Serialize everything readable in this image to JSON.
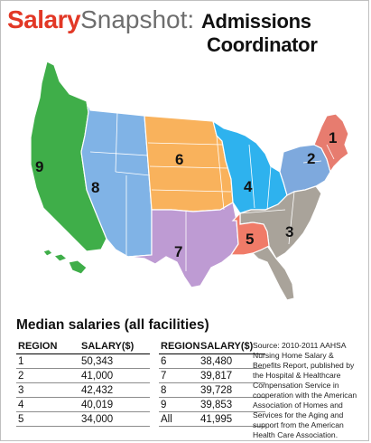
{
  "title": {
    "part1": "Salary",
    "part2": "Snapshot",
    "colon": ":",
    "line1": "Admissions",
    "line2": "Coordinator"
  },
  "map": {
    "regions": [
      {
        "id": "1",
        "label": "1",
        "color": "#e77c6f"
      },
      {
        "id": "2",
        "label": "2",
        "color": "#7ea9dd"
      },
      {
        "id": "3",
        "label": "3",
        "color": "#a9a39a"
      },
      {
        "id": "4",
        "label": "4",
        "color": "#2eb2ee"
      },
      {
        "id": "5",
        "label": "5",
        "color": "#f07b68"
      },
      {
        "id": "6",
        "label": "6",
        "color": "#f9b25c"
      },
      {
        "id": "7",
        "label": "7",
        "color": "#be9bd3"
      },
      {
        "id": "8",
        "label": "8",
        "color": "#80b3e6"
      },
      {
        "id": "9",
        "label": "9",
        "color": "#3fae49"
      }
    ]
  },
  "subtitle": "Median salaries (all facilities)",
  "table": {
    "col_region": "REGION",
    "col_salary": "SALARY($)",
    "left_rows": [
      {
        "region": "1",
        "salary": "50,343"
      },
      {
        "region": "2",
        "salary": "41,000"
      },
      {
        "region": "3",
        "salary": "42,432"
      },
      {
        "region": "4",
        "salary": "40,019"
      },
      {
        "region": "5",
        "salary": "34,000"
      }
    ],
    "right_rows": [
      {
        "region": "6",
        "salary": "38,480"
      },
      {
        "region": "7",
        "salary": "39,817"
      },
      {
        "region": "8",
        "salary": "39,728"
      },
      {
        "region": "9",
        "salary": "39,853"
      },
      {
        "region": "All",
        "salary": "41,995"
      }
    ]
  },
  "source": "Source: 2010-2011 AAHSA Nursing Home Salary & Benefits Report, published by the Hospital & Healthcare Compensation Service in cooperation with the American Association of Homes and Services for the Aging and support from the American Health Care Association."
}
